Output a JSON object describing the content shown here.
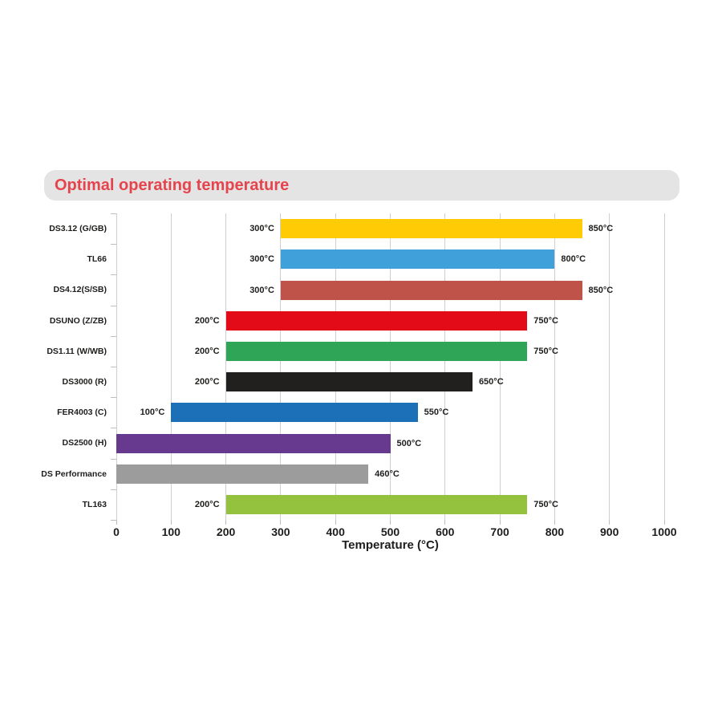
{
  "header": {
    "title": "Optimal operating temperature",
    "title_color": "#E5444D",
    "background": "#E4E4E4"
  },
  "chart_data": {
    "type": "bar",
    "orientation": "horizontal",
    "title": "Optimal operating temperature",
    "xlabel": "Temperature (°C)",
    "xlim": [
      0,
      1000
    ],
    "xticks": [
      0,
      100,
      200,
      300,
      400,
      500,
      600,
      700,
      800,
      900,
      1000
    ],
    "grid": true,
    "grid_color": "#CFCFCF",
    "text_color": "#1D1D1B",
    "legend": "none",
    "categories": [
      "DS3.12 (G/GB)",
      "TL66",
      "DS4.12(S/SB)",
      "DSUNO (Z/ZB)",
      "DS1.11 (W/WB)",
      "DS3000 (R)",
      "FER4003 (C)",
      "DS2500 (H)",
      "DS Performance",
      "TL163"
    ],
    "bars": [
      {
        "label": "DS3.12 (G/GB)",
        "start": 300,
        "end": 850,
        "start_label": "300°C",
        "end_label": "850°C",
        "color": "#FFCB05"
      },
      {
        "label": "TL66",
        "start": 300,
        "end": 800,
        "start_label": "300°C",
        "end_label": "800°C",
        "color": "#3FA0DA"
      },
      {
        "label": "DS4.12(S/SB)",
        "start": 300,
        "end": 850,
        "start_label": "300°C",
        "end_label": "850°C",
        "color": "#BF5349"
      },
      {
        "label": "DSUNO (Z/ZB)",
        "start": 200,
        "end": 750,
        "start_label": "200°C",
        "end_label": "750°C",
        "color": "#E30B17"
      },
      {
        "label": "DS1.11 (W/WB)",
        "start": 200,
        "end": 750,
        "start_label": "200°C",
        "end_label": "750°C",
        "color": "#2FA558"
      },
      {
        "label": "DS3000 (R)",
        "start": 200,
        "end": 650,
        "start_label": "200°C",
        "end_label": "650°C",
        "color": "#221F1F"
      },
      {
        "label": "FER4003 (C)",
        "start": 100,
        "end": 550,
        "start_label": "100°C",
        "end_label": "550°C",
        "color": "#1C70B7"
      },
      {
        "label": "DS2500 (H)",
        "start": 0,
        "end": 500,
        "start_label": "",
        "end_label": "500°C",
        "color": "#67398F"
      },
      {
        "label": "DS Performance",
        "start": 0,
        "end": 460,
        "start_label": "",
        "end_label": "460°C",
        "color": "#9C9C9C"
      },
      {
        "label": "TL163",
        "start": 200,
        "end": 750,
        "start_label": "200°C",
        "end_label": "750°C",
        "color": "#95C23E"
      }
    ]
  }
}
